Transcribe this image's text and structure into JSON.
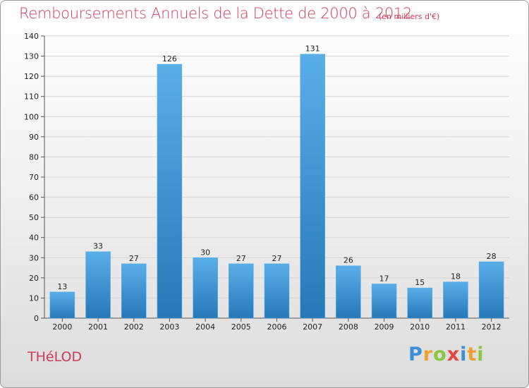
{
  "header": {
    "title": "Remboursements Annuels de la Dette de 2000 à 2012",
    "unit": "(en milliers d'€)"
  },
  "footer": {
    "city": "THéLOD",
    "logo_letters": [
      "P",
      "r",
      "o",
      "x",
      "i",
      "t",
      "i"
    ],
    "logo_colors": [
      "#3a8fd8",
      "#f0a030",
      "#8cc63f",
      "#e8463c",
      "#3a8fd8",
      "#f0a030",
      "#8cc63f"
    ]
  },
  "chart_data": {
    "type": "bar",
    "title": "Remboursements Annuels de la Dette de 2000 à 2012",
    "categories": [
      "2000",
      "2001",
      "2002",
      "2003",
      "2004",
      "2005",
      "2006",
      "2007",
      "2008",
      "2009",
      "2010",
      "2011",
      "2012"
    ],
    "values": [
      13,
      33,
      27,
      126,
      30,
      27,
      27,
      131,
      26,
      17,
      15,
      18,
      28
    ],
    "value_labels": [
      "13",
      "33",
      "27",
      "126",
      "30",
      "27",
      "27",
      "131",
      "26",
      "17",
      "15",
      "18",
      "28"
    ],
    "ylim": [
      0,
      140
    ],
    "yticks": [
      0,
      10,
      20,
      30,
      40,
      50,
      60,
      70,
      80,
      90,
      100,
      110,
      120,
      130,
      140
    ],
    "ytick_labels": [
      "0",
      "10",
      "20",
      "30",
      "40",
      "50",
      "60",
      "70",
      "80",
      "90",
      "100",
      "110",
      "120",
      "130",
      "140"
    ],
    "grid": true,
    "bar_color_top": "#5aaee8",
    "bar_color_bottom": "#2678b8"
  }
}
